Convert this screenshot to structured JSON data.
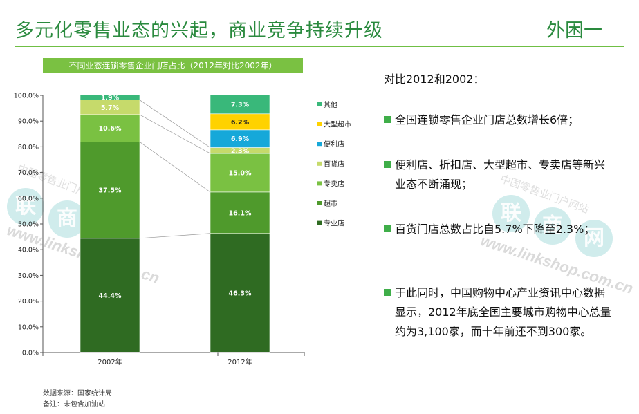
{
  "header": {
    "title": "多元化零售业态的兴起，商业竞争持续升级",
    "corner_label": "外困一"
  },
  "chart_data": {
    "type": "bar",
    "stacked": true,
    "percent": true,
    "title": "不同业态连锁零售企业门店占比（2012年对比2002年）",
    "categories": [
      "2002年",
      "2012年"
    ],
    "ylim": [
      0,
      100
    ],
    "yticks": [
      "0.0%",
      "10.0%",
      "20.0%",
      "30.0%",
      "40.0%",
      "50.0%",
      "60.0%",
      "70.0%",
      "80.0%",
      "90.0%",
      "100.0%"
    ],
    "legend_position": "right",
    "series": [
      {
        "name": "专业店",
        "color": "#2f6b22",
        "values": [
          44.4,
          46.3
        ],
        "labels": [
          "44.4%",
          "46.3%"
        ]
      },
      {
        "name": "超市",
        "color": "#4f9a2c",
        "values": [
          37.5,
          16.1
        ],
        "labels": [
          "37.5%",
          "16.1%"
        ]
      },
      {
        "name": "专卖店",
        "color": "#7ac142",
        "values": [
          10.6,
          15.0
        ],
        "labels": [
          "10.6%",
          "15.0%"
        ]
      },
      {
        "name": "百货店",
        "color": "#c6da6b",
        "values": [
          5.7,
          2.3
        ],
        "labels": [
          "5.7%",
          "2.3%"
        ]
      },
      {
        "name": "便利店",
        "color": "#16a8d9",
        "values": [
          0,
          6.9
        ],
        "labels": [
          "",
          "6.9%"
        ]
      },
      {
        "name": "大型超市",
        "color": "#ffd200",
        "values": [
          0,
          6.2
        ],
        "labels": [
          "",
          "6.2%"
        ]
      },
      {
        "name": "其他",
        "color": "#39b87a",
        "values": [
          1.9,
          7.3
        ],
        "labels": [
          "1.9%",
          "7.3%"
        ]
      }
    ],
    "legend_order": [
      "其他",
      "大型超市",
      "便利店",
      "百货店",
      "专卖店",
      "超市",
      "专业店"
    ]
  },
  "watermark": {
    "cn_text": "中国零售业门户网站",
    "chars": [
      "联",
      "商",
      "网"
    ],
    "url": "www.linkshop.com.cn"
  },
  "summary": {
    "heading": "对比2012和2002：",
    "bullets": [
      "全国连锁零售企业门店总数增长6倍；",
      "便利店、折扣店、大型超市、专卖店等新兴业态不断涌现；",
      "百货门店总数占比自5.7%下降至2.3%；",
      "于此同时，中国购物中心产业资讯中心数据显示，2012年底全国主要城市购物中心总量约为3,100家，而十年前还不到300家。"
    ]
  },
  "footnotes": {
    "source": "数据来源：国家统计局",
    "note": "备注：未包含加油站"
  }
}
